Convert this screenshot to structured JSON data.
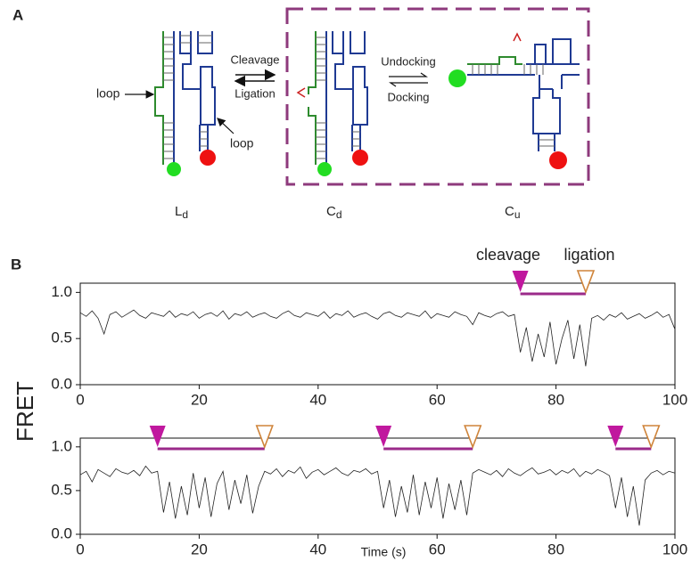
{
  "panel_a": {
    "label": "A",
    "loop_left": "loop",
    "loop_right": "loop",
    "cleavage": "Cleavage",
    "ligation": "Ligation",
    "undocking": "Undocking",
    "docking": "Docking",
    "states": [
      {
        "base": "L",
        "sub": "d"
      },
      {
        "base": "C",
        "sub": "d"
      },
      {
        "base": "C",
        "sub": "u"
      }
    ]
  },
  "panel_b": {
    "label": "B",
    "ylabel": "FRET",
    "xlabel": "Time (s)",
    "cleavage": "cleavage",
    "ligation": "ligation"
  },
  "chart_data": [
    {
      "type": "line",
      "color": "#222222",
      "cleavage_color": "#c0189e",
      "ligation_color": "#cf843a",
      "span_color": "#9b2a8a",
      "xlim": [
        0,
        100
      ],
      "ylim": [
        0,
        1.1
      ],
      "xticks": [
        0,
        20,
        40,
        60,
        80,
        100
      ],
      "yticks": [
        {
          "value": 0,
          "label": "0.0"
        },
        {
          "value": 0.5,
          "label": "0.5"
        },
        {
          "value": 1,
          "label": "1.0"
        }
      ],
      "x": [
        0,
        1,
        2,
        3,
        4,
        5,
        6,
        7,
        8,
        9,
        10,
        11,
        12,
        13,
        14,
        15,
        16,
        17,
        18,
        19,
        20,
        21,
        22,
        23,
        24,
        25,
        26,
        27,
        28,
        29,
        30,
        31,
        32,
        33,
        34,
        35,
        36,
        37,
        38,
        39,
        40,
        41,
        42,
        43,
        44,
        45,
        46,
        47,
        48,
        49,
        50,
        51,
        52,
        53,
        54,
        55,
        56,
        57,
        58,
        59,
        60,
        61,
        62,
        63,
        64,
        65,
        66,
        67,
        68,
        69,
        70,
        71,
        72,
        73,
        74,
        75,
        76,
        77,
        78,
        79,
        80,
        81,
        82,
        83,
        84,
        85,
        86,
        87,
        88,
        89,
        90,
        91,
        92,
        93,
        94,
        95,
        96,
        97,
        98,
        99,
        100
      ],
      "values": [
        0.78,
        0.74,
        0.8,
        0.72,
        0.55,
        0.76,
        0.79,
        0.73,
        0.77,
        0.81,
        0.75,
        0.72,
        0.78,
        0.76,
        0.74,
        0.8,
        0.73,
        0.77,
        0.75,
        0.79,
        0.72,
        0.76,
        0.78,
        0.74,
        0.8,
        0.71,
        0.77,
        0.75,
        0.79,
        0.73,
        0.76,
        0.78,
        0.74,
        0.72,
        0.77,
        0.8,
        0.75,
        0.73,
        0.78,
        0.76,
        0.74,
        0.79,
        0.72,
        0.77,
        0.75,
        0.8,
        0.73,
        0.76,
        0.78,
        0.74,
        0.71,
        0.77,
        0.79,
        0.75,
        0.73,
        0.78,
        0.76,
        0.74,
        0.8,
        0.72,
        0.77,
        0.75,
        0.73,
        0.79,
        0.76,
        0.74,
        0.65,
        0.78,
        0.75,
        0.73,
        0.77,
        0.79,
        0.74,
        0.76,
        0.35,
        0.62,
        0.25,
        0.55,
        0.3,
        0.68,
        0.22,
        0.5,
        0.7,
        0.28,
        0.65,
        0.2,
        0.72,
        0.75,
        0.7,
        0.76,
        0.73,
        0.78,
        0.71,
        0.74,
        0.77,
        0.72,
        0.75,
        0.79,
        0.73,
        0.76,
        0.6
      ],
      "events": [
        {
          "cleavage": 74,
          "ligation": 85
        }
      ]
    },
    {
      "type": "line",
      "color": "#222222",
      "cleavage_color": "#c0189e",
      "ligation_color": "#cf843a",
      "span_color": "#9b2a8a",
      "xlim": [
        0,
        100
      ],
      "ylim": [
        0,
        1.1
      ],
      "xticks": [
        0,
        20,
        40,
        60,
        80,
        100
      ],
      "yticks": [
        {
          "value": 0,
          "label": "0.0"
        },
        {
          "value": 0.5,
          "label": "0.5"
        },
        {
          "value": 1,
          "label": "1.0"
        }
      ],
      "x": [
        0,
        1,
        2,
        3,
        4,
        5,
        6,
        7,
        8,
        9,
        10,
        11,
        12,
        13,
        14,
        15,
        16,
        17,
        18,
        19,
        20,
        21,
        22,
        23,
        24,
        25,
        26,
        27,
        28,
        29,
        30,
        31,
        32,
        33,
        34,
        35,
        36,
        37,
        38,
        39,
        40,
        41,
        42,
        43,
        44,
        45,
        46,
        47,
        48,
        49,
        50,
        51,
        52,
        53,
        54,
        55,
        56,
        57,
        58,
        59,
        60,
        61,
        62,
        63,
        64,
        65,
        66,
        67,
        68,
        69,
        70,
        71,
        72,
        73,
        74,
        75,
        76,
        77,
        78,
        79,
        80,
        81,
        82,
        83,
        84,
        85,
        86,
        87,
        88,
        89,
        90,
        91,
        92,
        93,
        94,
        95,
        96,
        97,
        98,
        99,
        100
      ],
      "values": [
        0.68,
        0.72,
        0.6,
        0.74,
        0.7,
        0.66,
        0.75,
        0.71,
        0.69,
        0.73,
        0.67,
        0.78,
        0.7,
        0.72,
        0.25,
        0.6,
        0.18,
        0.55,
        0.22,
        0.7,
        0.3,
        0.65,
        0.2,
        0.58,
        0.72,
        0.28,
        0.62,
        0.35,
        0.68,
        0.24,
        0.55,
        0.72,
        0.69,
        0.75,
        0.66,
        0.73,
        0.7,
        0.77,
        0.64,
        0.71,
        0.74,
        0.68,
        0.72,
        0.76,
        0.7,
        0.67,
        0.73,
        0.71,
        0.75,
        0.69,
        0.72,
        0.3,
        0.62,
        0.2,
        0.55,
        0.25,
        0.68,
        0.22,
        0.6,
        0.3,
        0.65,
        0.18,
        0.58,
        0.28,
        0.62,
        0.22,
        0.7,
        0.74,
        0.71,
        0.68,
        0.73,
        0.66,
        0.75,
        0.7,
        0.67,
        0.72,
        0.76,
        0.69,
        0.71,
        0.74,
        0.68,
        0.73,
        0.7,
        0.75,
        0.66,
        0.72,
        0.69,
        0.74,
        0.71,
        0.67,
        0.3,
        0.65,
        0.2,
        0.55,
        0.1,
        0.62,
        0.7,
        0.73,
        0.68,
        0.72,
        0.7
      ],
      "events": [
        {
          "cleavage": 13,
          "ligation": 31
        },
        {
          "cleavage": 51,
          "ligation": 66
        },
        {
          "cleavage": 90,
          "ligation": 96
        }
      ]
    }
  ]
}
